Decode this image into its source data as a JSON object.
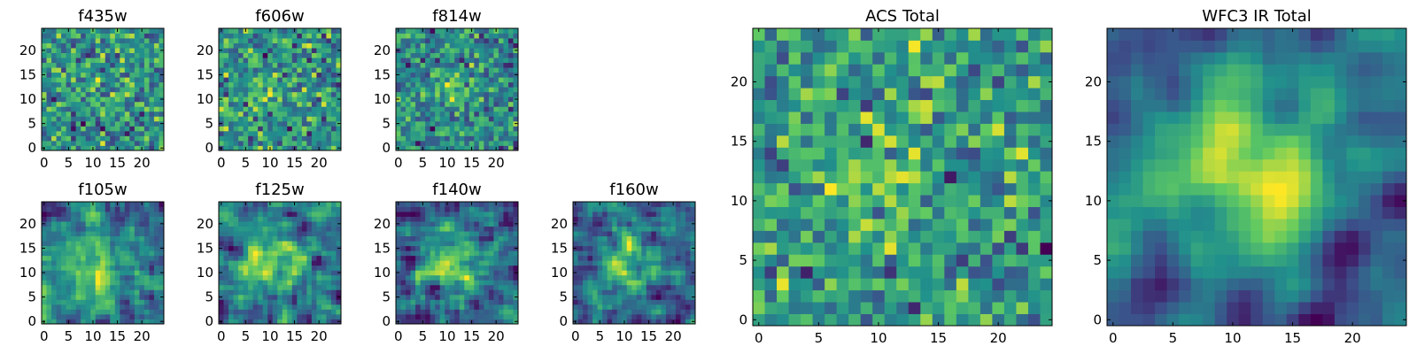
{
  "figure": {
    "colormap": "viridis",
    "colormap_stops": [
      "#440154",
      "#3b528b",
      "#21918c",
      "#5ec962",
      "#fde725"
    ]
  },
  "chart_data": [
    {
      "type": "heatmap",
      "title": "f435w",
      "grid_size": 25,
      "seed": 11,
      "blob_strength": 0.05,
      "blob_center": [
        12,
        12
      ],
      "blob_sigma": 4,
      "noise_scale": 1,
      "smoothness": 0,
      "xticks": [
        0,
        5,
        10,
        15,
        20
      ],
      "yticks": [
        0,
        5,
        10,
        15,
        20
      ],
      "xlim": [
        -0.5,
        24.5
      ],
      "ylim": [
        -0.5,
        24.5
      ]
    },
    {
      "type": "heatmap",
      "title": "f606w",
      "grid_size": 25,
      "seed": 23,
      "blob_strength": 0.25,
      "blob_center": [
        10,
        12
      ],
      "blob_sigma": 3,
      "noise_scale": 1,
      "smoothness": 0,
      "xticks": [
        0,
        5,
        10,
        15,
        20
      ],
      "yticks": [
        0,
        5,
        10,
        15,
        20
      ],
      "xlim": [
        -0.5,
        24.5
      ],
      "ylim": [
        -0.5,
        24.5
      ]
    },
    {
      "type": "heatmap",
      "title": "f814w",
      "grid_size": 25,
      "seed": 37,
      "blob_strength": 0.25,
      "blob_center": [
        11,
        12
      ],
      "blob_sigma": 3,
      "noise_scale": 1,
      "smoothness": 0,
      "xticks": [
        0,
        5,
        10,
        15,
        20
      ],
      "yticks": [
        0,
        5,
        10,
        15,
        20
      ],
      "xlim": [
        -0.5,
        24.5
      ],
      "ylim": [
        -0.5,
        24.5
      ]
    },
    {
      "type": "heatmap",
      "title": "f105w",
      "grid_size": 25,
      "seed": 41,
      "blob_strength": 0.45,
      "blob_center": [
        11,
        11
      ],
      "blob_sigma": 5,
      "noise_scale": 1,
      "smoothness": 1,
      "xticks": [
        0,
        5,
        10,
        15,
        20
      ],
      "yticks": [
        0,
        5,
        10,
        15,
        20
      ],
      "xlim": [
        -0.5,
        24.5
      ],
      "ylim": [
        -0.5,
        24.5
      ]
    },
    {
      "type": "heatmap",
      "title": "f125w",
      "grid_size": 25,
      "seed": 53,
      "blob_strength": 0.4,
      "blob_center": [
        10,
        13
      ],
      "blob_sigma": 4,
      "noise_scale": 1,
      "smoothness": 1,
      "xticks": [
        0,
        5,
        10,
        15,
        20
      ],
      "yticks": [
        0,
        5,
        10,
        15,
        20
      ],
      "xlim": [
        -0.5,
        24.5
      ],
      "ylim": [
        -0.5,
        24.5
      ]
    },
    {
      "type": "heatmap",
      "title": "f140w",
      "grid_size": 25,
      "seed": 67,
      "blob_strength": 0.5,
      "blob_center": [
        12,
        11
      ],
      "blob_sigma": 5,
      "noise_scale": 1,
      "smoothness": 1,
      "xticks": [
        0,
        5,
        10,
        15,
        20
      ],
      "yticks": [
        0,
        5,
        10,
        15,
        20
      ],
      "xlim": [
        -0.5,
        24.5
      ],
      "ylim": [
        -0.5,
        24.5
      ]
    },
    {
      "type": "heatmap",
      "title": "f160w",
      "grid_size": 25,
      "seed": 79,
      "blob_strength": 0.5,
      "blob_center": [
        11,
        12
      ],
      "blob_sigma": 4,
      "noise_scale": 1,
      "smoothness": 1,
      "xticks": [
        0,
        5,
        10,
        15,
        20
      ],
      "yticks": [
        0,
        5,
        10,
        15,
        20
      ],
      "xlim": [
        -0.5,
        24.5
      ],
      "ylim": [
        -0.5,
        24.5
      ]
    },
    {
      "type": "heatmap",
      "title": "ACS Total",
      "grid_size": 25,
      "seed": 97,
      "blob_strength": 0.35,
      "blob_center": [
        10,
        11
      ],
      "blob_sigma": 4,
      "noise_scale": 1,
      "smoothness": 0,
      "xticks": [
        0,
        5,
        10,
        15,
        20
      ],
      "yticks": [
        0,
        5,
        10,
        15,
        20
      ],
      "xlim": [
        -0.5,
        24.5
      ],
      "ylim": [
        -0.5,
        24.5
      ]
    },
    {
      "type": "heatmap",
      "title": "WFC3 IR Total",
      "grid_size": 25,
      "seed": 113,
      "blob_strength": 0.9,
      "blob_center": [
        11,
        12
      ],
      "blob_sigma": 6,
      "noise_scale": 0.8,
      "smoothness": 2,
      "xticks": [
        0,
        5,
        10,
        15,
        20
      ],
      "yticks": [
        0,
        5,
        10,
        15,
        20
      ],
      "xlim": [
        -0.5,
        24.5
      ],
      "ylim": [
        -0.5,
        24.5
      ]
    }
  ]
}
